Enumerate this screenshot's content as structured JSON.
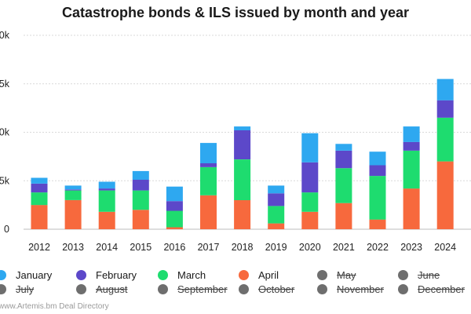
{
  "chart_data": {
    "type": "bar",
    "stacked": true,
    "title": "Catastrophe bonds & ILS issued by month and year",
    "xlabel": "",
    "ylabel": "",
    "categories": [
      "2012",
      "2013",
      "2014",
      "2015",
      "2016",
      "2017",
      "2018",
      "2019",
      "2020",
      "2021",
      "2022",
      "2023",
      "2024"
    ],
    "ylim": [
      0,
      20000
    ],
    "yticks": [
      0,
      5000,
      10000,
      15000,
      20000
    ],
    "ytick_labels": [
      "0",
      "5k",
      "10k",
      "15k",
      "20k"
    ],
    "grid": true,
    "series": [
      {
        "name": "April",
        "color": "#f7693d",
        "values": [
          2500,
          3000,
          1800,
          2000,
          200,
          3500,
          3000,
          600,
          1800,
          2700,
          1000,
          4200,
          7000
        ]
      },
      {
        "name": "March",
        "color": "#1edc6f",
        "values": [
          1300,
          1000,
          2200,
          2000,
          1700,
          2900,
          4200,
          1800,
          2000,
          3600,
          4500,
          3900,
          4500
        ]
      },
      {
        "name": "February",
        "color": "#5c48c9",
        "values": [
          900,
          100,
          200,
          1100,
          1000,
          400,
          3000,
          1300,
          3100,
          1800,
          1100,
          900,
          1800
        ]
      },
      {
        "name": "January",
        "color": "#2ea8f0",
        "values": [
          600,
          400,
          700,
          900,
          1500,
          2100,
          400,
          800,
          3000,
          700,
          1400,
          1600,
          2200
        ]
      }
    ],
    "legend": [
      {
        "name": "January",
        "color": "#2ea8f0",
        "active": true
      },
      {
        "name": "February",
        "color": "#5c48c9",
        "active": true
      },
      {
        "name": "March",
        "color": "#1edc6f",
        "active": true
      },
      {
        "name": "April",
        "color": "#f7693d",
        "active": true
      },
      {
        "name": "May",
        "color": "#6e6e6e",
        "active": false
      },
      {
        "name": "June",
        "color": "#6e6e6e",
        "active": false
      },
      {
        "name": "July",
        "color": "#6e6e6e",
        "active": false
      },
      {
        "name": "August",
        "color": "#6e6e6e",
        "active": false
      },
      {
        "name": "September",
        "color": "#6e6e6e",
        "active": false
      },
      {
        "name": "October",
        "color": "#6e6e6e",
        "active": false
      },
      {
        "name": "November",
        "color": "#6e6e6e",
        "active": false
      },
      {
        "name": "December",
        "color": "#6e6e6e",
        "active": false
      }
    ],
    "legend_position": "bottom"
  },
  "footer": "www.Artemis.bm Deal Directory"
}
